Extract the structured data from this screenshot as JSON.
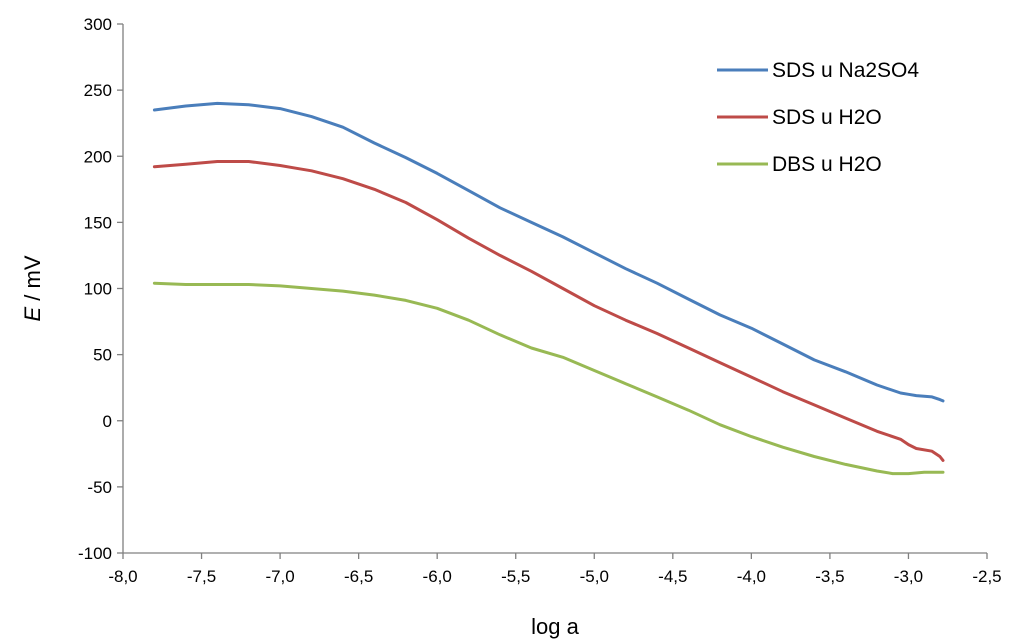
{
  "chart_data": {
    "type": "line",
    "title": "",
    "xlabel": "log a",
    "ylabel_italic": "E",
    "ylabel_unit": " / mV",
    "xlim": [
      -8.0,
      -2.5
    ],
    "ylim": [
      -100,
      300
    ],
    "x_ticks": [
      -8.0,
      -7.5,
      -7.0,
      -6.5,
      -6.0,
      -5.5,
      -5.0,
      -4.5,
      -4.0,
      -3.5,
      -3.0,
      -2.5
    ],
    "x_tick_labels": [
      "-8,0",
      "-7,5",
      "-7,0",
      "-6,5",
      "-6,0",
      "-5,5",
      "-5,0",
      "-4,5",
      "-4,0",
      "-3,5",
      "-3,0",
      "-2,5"
    ],
    "y_ticks": [
      -100,
      -50,
      0,
      50,
      100,
      150,
      200,
      250,
      300
    ],
    "y_tick_labels": [
      "-100",
      "-50",
      "0",
      "50",
      "100",
      "150",
      "200",
      "250",
      "300"
    ],
    "grid": false,
    "legend_position": "top-right",
    "series": [
      {
        "name": "SDS u Na2SO4",
        "color": "#4a7ebb",
        "x": [
          -7.8,
          -7.6,
          -7.4,
          -7.2,
          -7.0,
          -6.9,
          -6.8,
          -6.6,
          -6.4,
          -6.2,
          -6.0,
          -5.8,
          -5.6,
          -5.4,
          -5.2,
          -5.0,
          -4.8,
          -4.6,
          -4.4,
          -4.2,
          -4.0,
          -3.8,
          -3.6,
          -3.4,
          -3.2,
          -3.05,
          -3.0,
          -2.95,
          -2.85,
          -2.8,
          -2.78
        ],
        "y": [
          235,
          238,
          240,
          239,
          236,
          233,
          230,
          222,
          210,
          199,
          187,
          174,
          161,
          150,
          139,
          127,
          115,
          104,
          92,
          80,
          70,
          58,
          46,
          37,
          27,
          21,
          20,
          19,
          18,
          16,
          15
        ]
      },
      {
        "name": "SDS u H2O",
        "color": "#be4b48",
        "x": [
          -7.8,
          -7.6,
          -7.4,
          -7.2,
          -7.0,
          -6.9,
          -6.8,
          -6.6,
          -6.4,
          -6.2,
          -6.0,
          -5.8,
          -5.6,
          -5.4,
          -5.2,
          -5.0,
          -4.8,
          -4.6,
          -4.4,
          -4.2,
          -4.0,
          -3.8,
          -3.6,
          -3.4,
          -3.2,
          -3.05,
          -3.0,
          -2.95,
          -2.85,
          -2.8,
          -2.78
        ],
        "y": [
          192,
          194,
          196,
          196,
          193,
          191,
          189,
          183,
          175,
          165,
          152,
          138,
          125,
          113,
          100,
          87,
          76,
          66,
          55,
          44,
          33,
          22,
          12,
          2,
          -8,
          -14,
          -18,
          -21,
          -23,
          -27,
          -30
        ]
      },
      {
        "name": "DBS u H2O",
        "color": "#98b954",
        "x": [
          -7.8,
          -7.6,
          -7.4,
          -7.2,
          -7.0,
          -6.8,
          -6.6,
          -6.4,
          -6.2,
          -6.0,
          -5.8,
          -5.6,
          -5.4,
          -5.2,
          -5.0,
          -4.8,
          -4.6,
          -4.4,
          -4.2,
          -4.0,
          -3.8,
          -3.6,
          -3.4,
          -3.2,
          -3.1,
          -3.0,
          -2.9,
          -2.78
        ],
        "y": [
          104,
          103,
          103,
          103,
          102,
          100,
          98,
          95,
          91,
          85,
          76,
          65,
          55,
          48,
          38,
          28,
          18,
          8,
          -3,
          -12,
          -20,
          -27,
          -33,
          -38,
          -40,
          -40,
          -39,
          -39
        ]
      }
    ]
  }
}
